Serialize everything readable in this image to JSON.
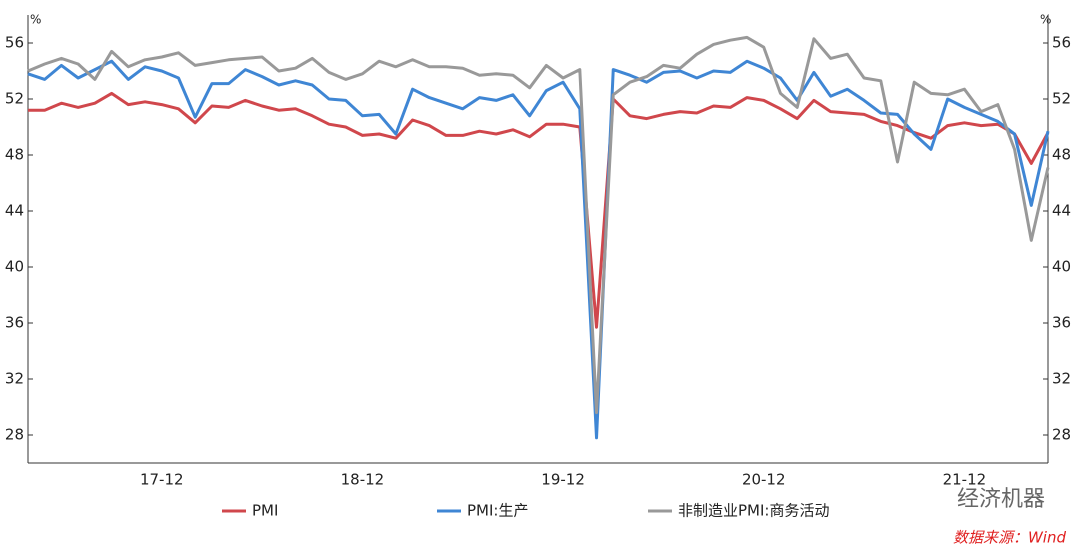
{
  "chart_data": {
    "type": "line",
    "y_unit_left": "%",
    "y_unit_right": "%",
    "categories": [
      null,
      null,
      null,
      null,
      null,
      null,
      null,
      null,
      "17-12",
      null,
      null,
      null,
      null,
      null,
      null,
      null,
      null,
      null,
      null,
      null,
      "18-12",
      null,
      null,
      null,
      null,
      null,
      null,
      null,
      null,
      null,
      null,
      null,
      "19-12",
      null,
      null,
      null,
      null,
      null,
      null,
      null,
      null,
      null,
      null,
      null,
      "20-12",
      null,
      null,
      null,
      null,
      null,
      null,
      null,
      null,
      null,
      null,
      null,
      "21-12",
      null,
      null,
      null,
      null,
      null
    ],
    "series": [
      {
        "name": "PMI",
        "color": "#d0474c",
        "values": [
          51.2,
          51.2,
          51.7,
          51.4,
          51.7,
          52.4,
          51.6,
          51.8,
          51.6,
          51.3,
          50.3,
          51.5,
          51.4,
          51.9,
          51.5,
          51.2,
          51.3,
          50.8,
          50.2,
          50.0,
          49.4,
          49.5,
          49.2,
          50.5,
          50.1,
          49.4,
          49.4,
          49.7,
          49.5,
          49.8,
          49.3,
          50.2,
          50.2,
          50.0,
          35.7,
          52.0,
          50.8,
          50.6,
          50.9,
          51.1,
          51.0,
          51.5,
          51.4,
          52.1,
          51.9,
          51.3,
          50.6,
          51.9,
          51.1,
          51.0,
          50.9,
          50.4,
          50.1,
          49.6,
          49.2,
          50.1,
          50.3,
          50.1,
          50.2,
          49.5,
          47.4,
          49.6
        ]
      },
      {
        "name": "PMI:生产",
        "color": "#3f86d4",
        "values": [
          53.8,
          53.4,
          54.4,
          53.5,
          54.1,
          54.7,
          53.4,
          54.3,
          54.0,
          53.5,
          50.7,
          53.1,
          53.1,
          54.1,
          53.6,
          53.0,
          53.3,
          53.0,
          52.0,
          51.9,
          50.8,
          50.9,
          49.5,
          52.7,
          52.1,
          51.7,
          51.3,
          52.1,
          51.9,
          52.3,
          50.8,
          52.6,
          53.2,
          51.3,
          27.8,
          54.1,
          53.7,
          53.2,
          53.9,
          54.0,
          53.5,
          54.0,
          53.9,
          54.7,
          54.2,
          53.5,
          51.9,
          53.9,
          52.2,
          52.7,
          51.9,
          51.0,
          50.9,
          49.5,
          48.4,
          52.0,
          51.4,
          50.9,
          50.4,
          49.5,
          44.4,
          49.7
        ]
      },
      {
        "name": "非制造业PMI:商务活动",
        "color": "#999999",
        "values": [
          54.0,
          54.5,
          54.9,
          54.5,
          53.4,
          55.4,
          54.3,
          54.8,
          55.0,
          55.3,
          54.4,
          54.6,
          54.8,
          54.9,
          55.0,
          54.0,
          54.2,
          54.9,
          53.9,
          53.4,
          53.8,
          54.7,
          54.3,
          54.8,
          54.3,
          54.3,
          54.2,
          53.7,
          53.8,
          53.7,
          52.8,
          54.4,
          53.5,
          54.1,
          29.6,
          52.3,
          53.2,
          53.6,
          54.4,
          54.2,
          55.2,
          55.9,
          56.2,
          56.4,
          55.7,
          52.4,
          51.4,
          56.3,
          54.9,
          55.2,
          53.5,
          53.3,
          47.5,
          53.2,
          52.4,
          52.3,
          52.7,
          51.1,
          51.6,
          48.4,
          41.9,
          47.1
        ]
      }
    ],
    "ylim": [
      26,
      58
    ],
    "yticks": [
      28,
      32,
      36,
      40,
      44,
      48,
      52,
      56
    ],
    "grid": false,
    "watermark": "经济机器",
    "source": "数据来源：Wind"
  }
}
